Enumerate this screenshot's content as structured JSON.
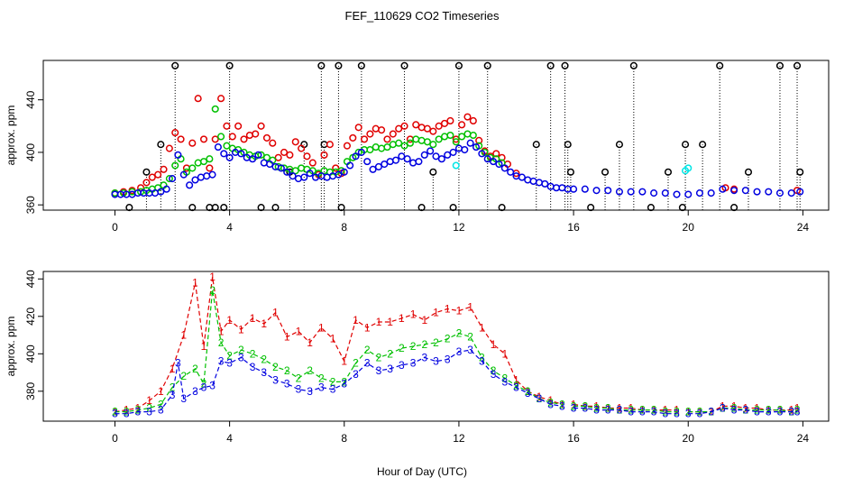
{
  "title": "FEF_110629  CO2 Timeseries",
  "xlabel": "Hour of Day (UTC)",
  "chart_data": [
    {
      "type": "scatter",
      "ylabel": "approx. ppm",
      "xlim": [
        -2.5,
        24.9
      ],
      "ylim": [
        356,
        470
      ],
      "xticks": [
        0,
        4,
        8,
        12,
        16,
        20,
        24
      ],
      "yticks": [
        360,
        400,
        440
      ],
      "grid": false,
      "marker": "open-circle",
      "series": [
        {
          "color": "#000000",
          "stems": true,
          "x": [
            0.5,
            1.1,
            1.6,
            2.1,
            2.7,
            3.3,
            3.5,
            3.8,
            4.0,
            5.1,
            5.6,
            6.1,
            6.6,
            7.2,
            7.3,
            7.8,
            7.9,
            8.6,
            10.1,
            10.7,
            11.1,
            11.8,
            12.0,
            13.0,
            13.5,
            14.7,
            15.2,
            15.7,
            15.8,
            15.9,
            16.6,
            17.1,
            17.6,
            18.1,
            18.7,
            19.3,
            19.8,
            19.9,
            20.5,
            21.1,
            21.6,
            22.1,
            23.2,
            23.8,
            23.9
          ],
          "y": [
            358,
            385,
            406,
            466,
            358,
            358,
            358,
            358,
            466,
            358,
            358,
            385,
            406,
            466,
            406,
            466,
            358,
            466,
            466,
            358,
            385,
            358,
            466,
            466,
            358,
            406,
            466,
            466,
            406,
            385,
            358,
            385,
            406,
            466,
            358,
            385,
            358,
            406,
            406,
            466,
            358,
            385,
            466,
            466,
            385
          ]
        },
        {
          "color": "#00e5e5",
          "x": [
            11.9,
            19.9,
            20.0
          ],
          "y": [
            390,
            386,
            388
          ]
        },
        {
          "color": "#e00000",
          "x": [
            0.0,
            0.3,
            0.6,
            0.9,
            1.1,
            1.3,
            1.5,
            1.7,
            1.9,
            2.1,
            2.3,
            2.5,
            2.7,
            2.9,
            3.1,
            3.3,
            3.5,
            3.7,
            3.9,
            4.1,
            4.3,
            4.5,
            4.7,
            4.9,
            5.1,
            5.3,
            5.5,
            5.7,
            5.9,
            6.1,
            6.3,
            6.5,
            6.7,
            6.9,
            7.1,
            7.3,
            7.5,
            7.7,
            7.9,
            8.1,
            8.3,
            8.5,
            8.7,
            8.9,
            9.1,
            9.3,
            9.5,
            9.7,
            9.9,
            10.1,
            10.3,
            10.5,
            10.7,
            10.9,
            11.1,
            11.3,
            11.5,
            11.7,
            11.9,
            12.1,
            12.3,
            12.5,
            12.7,
            12.9,
            13.1,
            13.3,
            13.5,
            13.7,
            14.0,
            21.3,
            21.6,
            23.8
          ],
          "y": [
            369,
            370,
            371,
            373,
            377,
            381,
            383,
            387,
            403,
            415,
            410,
            388,
            407,
            441,
            410,
            388,
            410,
            441,
            420,
            412,
            420,
            410,
            413,
            414,
            420,
            411,
            407,
            396,
            400,
            398,
            408,
            403,
            397,
            392,
            383,
            398,
            406,
            388,
            384,
            405,
            411,
            419,
            410,
            414,
            418,
            417,
            410,
            414,
            418,
            420,
            410,
            421,
            419,
            418,
            416,
            420,
            422,
            424,
            410,
            421,
            427,
            424,
            409,
            401,
            397,
            399,
            396,
            391,
            384,
            373,
            372,
            371
          ]
        },
        {
          "color": "#00c000",
          "x": [
            0.0,
            0.3,
            0.6,
            0.9,
            1.1,
            1.3,
            1.5,
            1.7,
            1.9,
            2.1,
            2.3,
            2.5,
            2.7,
            2.9,
            3.1,
            3.3,
            3.5,
            3.7,
            3.9,
            4.1,
            4.3,
            4.5,
            4.7,
            4.9,
            5.1,
            5.3,
            5.5,
            5.7,
            5.9,
            6.1,
            6.3,
            6.5,
            6.7,
            6.9,
            7.1,
            7.3,
            7.5,
            7.7,
            7.9,
            8.1,
            8.3,
            8.5,
            8.7,
            8.9,
            9.1,
            9.3,
            9.5,
            9.7,
            9.9,
            10.1,
            10.3,
            10.5,
            10.7,
            10.9,
            11.1,
            11.3,
            11.5,
            11.7,
            11.9,
            12.1,
            12.3,
            12.5,
            12.7,
            12.9,
            13.1,
            13.3,
            13.5
          ],
          "y": [
            369,
            369,
            370,
            370,
            371,
            372,
            373,
            375,
            380,
            390,
            395,
            385,
            388,
            392,
            393,
            395,
            433,
            412,
            405,
            403,
            402,
            400,
            398,
            397,
            398,
            396,
            394,
            389,
            388,
            387,
            386,
            388,
            387,
            386,
            384,
            386,
            385,
            385,
            386,
            393,
            396,
            400,
            402,
            402,
            404,
            403,
            404,
            406,
            407,
            405,
            407,
            410,
            409,
            408,
            406,
            410,
            412,
            413,
            408,
            412,
            414,
            413,
            405,
            400,
            396,
            395,
            392
          ]
        },
        {
          "color": "#0000e0",
          "x": [
            0.0,
            0.2,
            0.4,
            0.6,
            0.8,
            1.0,
            1.2,
            1.4,
            1.6,
            1.8,
            2.0,
            2.2,
            2.4,
            2.6,
            2.8,
            3.0,
            3.2,
            3.4,
            3.6,
            3.8,
            4.0,
            4.2,
            4.4,
            4.6,
            4.8,
            5.0,
            5.2,
            5.4,
            5.6,
            5.8,
            6.0,
            6.2,
            6.4,
            6.6,
            6.8,
            7.0,
            7.2,
            7.4,
            7.6,
            7.8,
            8.0,
            8.2,
            8.4,
            8.6,
            8.8,
            9.0,
            9.2,
            9.4,
            9.6,
            9.8,
            10.0,
            10.2,
            10.4,
            10.6,
            10.8,
            11.0,
            11.2,
            11.4,
            11.6,
            11.8,
            12.0,
            12.2,
            12.4,
            12.6,
            12.8,
            13.0,
            13.2,
            13.4,
            13.6,
            13.8,
            14.0,
            14.2,
            14.4,
            14.6,
            14.8,
            15.0,
            15.2,
            15.4,
            15.6,
            15.8,
            16.0,
            16.4,
            16.8,
            17.2,
            17.6,
            18.0,
            18.4,
            18.8,
            19.2,
            19.6,
            20.0,
            20.4,
            20.8,
            21.2,
            21.6,
            22.0,
            22.4,
            22.8,
            23.2,
            23.6,
            23.9
          ],
          "y": [
            368,
            368,
            368,
            368,
            369,
            369,
            369,
            369,
            370,
            372,
            380,
            398,
            383,
            375,
            379,
            381,
            382,
            383,
            404,
            399,
            396,
            400,
            399,
            396,
            395,
            398,
            392,
            391,
            389,
            388,
            385,
            382,
            380,
            381,
            384,
            381,
            382,
            381,
            382,
            383,
            385,
            390,
            397,
            400,
            393,
            387,
            389,
            391,
            393,
            394,
            397,
            395,
            392,
            393,
            398,
            401,
            397,
            395,
            398,
            400,
            403,
            402,
            407,
            404,
            399,
            395,
            393,
            391,
            388,
            385,
            382,
            381,
            379,
            378,
            377,
            376,
            374,
            373,
            373,
            372,
            372,
            372,
            371,
            371,
            370,
            370,
            370,
            369,
            369,
            368,
            368,
            369,
            369,
            372,
            371,
            371,
            370,
            370,
            369,
            369,
            370
          ]
        }
      ]
    },
    {
      "type": "line",
      "ylabel": "approx. ppm",
      "xlim": [
        -2.5,
        24.9
      ],
      "ylim": [
        364,
        444
      ],
      "xticks": [
        0,
        4,
        8,
        12,
        16,
        20,
        24
      ],
      "yticks": [
        380,
        400,
        420,
        440
      ],
      "grid": false,
      "marker": "series-number",
      "series": [
        {
          "label": "1",
          "color": "#e00000",
          "x": [
            0.0,
            0.4,
            0.8,
            1.2,
            1.6,
            2.0,
            2.4,
            2.8,
            3.1,
            3.4,
            3.7,
            4.0,
            4.4,
            4.8,
            5.2,
            5.6,
            6.0,
            6.4,
            6.8,
            7.2,
            7.6,
            8.0,
            8.4,
            8.8,
            9.2,
            9.6,
            10.0,
            10.4,
            10.8,
            11.2,
            11.6,
            12.0,
            12.4,
            12.8,
            13.2,
            13.6,
            14.0,
            14.4,
            14.8,
            15.2,
            15.6,
            null,
            16.0,
            16.4,
            16.8,
            17.2,
            17.6,
            18.0,
            18.4,
            18.8,
            19.2,
            19.6,
            null,
            20.0,
            20.4,
            20.8,
            21.2,
            21.6,
            22.0,
            22.4,
            22.8,
            23.2,
            23.6,
            23.8
          ],
          "y": [
            369,
            370,
            371,
            375,
            380,
            392,
            410,
            438,
            404,
            441,
            412,
            418,
            413,
            419,
            416,
            422,
            409,
            412,
            406,
            414,
            408,
            396,
            418,
            414,
            417,
            417,
            419,
            421,
            418,
            422,
            424,
            423,
            425,
            414,
            405,
            400,
            386,
            380,
            377,
            375,
            373,
            null,
            373,
            372,
            372,
            371,
            371,
            371,
            370,
            370,
            370,
            370,
            null,
            369,
            369,
            369,
            372,
            372,
            371,
            371,
            370,
            370,
            370,
            371
          ]
        },
        {
          "label": "2",
          "color": "#00c000",
          "x": [
            0.0,
            0.4,
            0.8,
            1.2,
            1.6,
            2.0,
            2.4,
            2.8,
            3.1,
            3.4,
            3.7,
            4.0,
            4.4,
            4.8,
            5.2,
            5.6,
            6.0,
            6.4,
            6.8,
            7.2,
            7.6,
            8.0,
            8.4,
            8.8,
            9.2,
            9.6,
            10.0,
            10.4,
            10.8,
            11.2,
            11.6,
            12.0,
            12.4,
            12.8,
            13.2,
            13.6,
            14.0,
            14.4,
            14.8,
            15.2,
            15.6,
            null,
            16.0,
            16.4,
            16.8,
            17.2,
            17.6,
            18.0,
            18.4,
            18.8,
            19.2,
            19.6,
            null,
            20.0,
            20.4,
            20.8,
            21.2,
            21.6,
            22.0,
            22.4,
            22.8,
            23.2,
            23.6,
            23.8
          ],
          "y": [
            369,
            369,
            370,
            371,
            373,
            382,
            388,
            392,
            384,
            434,
            406,
            399,
            402,
            400,
            397,
            393,
            391,
            387,
            391,
            387,
            385,
            385,
            395,
            402,
            398,
            400,
            403,
            404,
            405,
            406,
            408,
            411,
            409,
            398,
            391,
            387,
            383,
            380,
            376,
            374,
            373,
            null,
            372,
            372,
            371,
            371,
            370,
            370,
            370,
            370,
            369,
            369,
            null,
            369,
            369,
            369,
            371,
            371,
            370,
            370,
            370,
            370,
            369,
            370
          ]
        },
        {
          "label": "3",
          "color": "#0000e0",
          "x": [
            0.0,
            0.4,
            0.8,
            1.2,
            1.6,
            2.0,
            2.2,
            2.4,
            2.8,
            3.1,
            3.4,
            3.7,
            4.0,
            4.4,
            4.8,
            5.2,
            5.6,
            6.0,
            6.4,
            6.8,
            7.2,
            7.6,
            8.0,
            8.4,
            8.8,
            9.2,
            9.6,
            10.0,
            10.4,
            10.8,
            11.2,
            11.6,
            12.0,
            12.4,
            12.8,
            13.2,
            13.6,
            14.0,
            14.4,
            14.8,
            15.2,
            15.6,
            null,
            16.0,
            16.4,
            16.8,
            17.2,
            17.6,
            18.0,
            18.4,
            18.8,
            19.2,
            19.6,
            null,
            20.0,
            20.4,
            20.8,
            21.2,
            21.6,
            22.0,
            22.4,
            22.8,
            23.2,
            23.6,
            23.8
          ],
          "y": [
            368,
            368,
            369,
            369,
            370,
            378,
            395,
            376,
            380,
            382,
            383,
            396,
            395,
            398,
            393,
            390,
            386,
            384,
            381,
            380,
            382,
            381,
            384,
            389,
            395,
            391,
            392,
            394,
            395,
            398,
            396,
            397,
            401,
            402,
            396,
            389,
            385,
            382,
            379,
            376,
            373,
            372,
            null,
            371,
            371,
            370,
            370,
            370,
            369,
            369,
            369,
            368,
            368,
            null,
            368,
            368,
            369,
            371,
            370,
            370,
            369,
            369,
            369,
            369,
            369
          ]
        }
      ]
    }
  ]
}
